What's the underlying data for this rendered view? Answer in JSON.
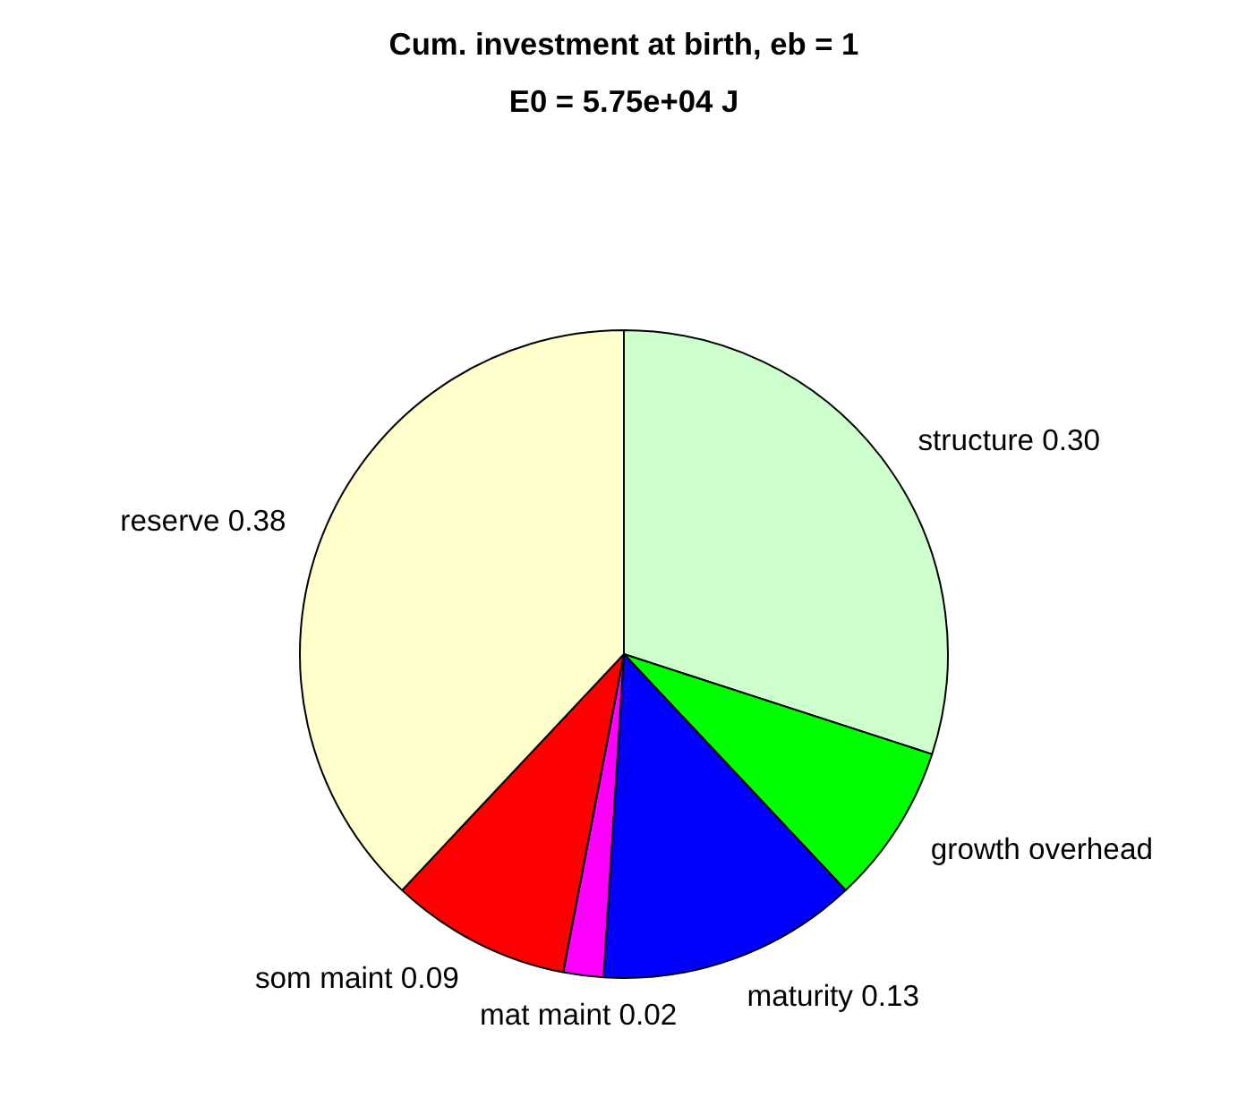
{
  "chart_data": {
    "type": "pie",
    "title": "Cum. investment at birth, eb = 1",
    "subtitle": "E0 = 5.75e+04 J",
    "categories": [
      "structure",
      "growth overhead",
      "maturity",
      "mat maint",
      "som maint",
      "reserve"
    ],
    "values": [
      0.3,
      0.08,
      0.13,
      0.02,
      0.09,
      0.38
    ],
    "value_labels": [
      "0.30",
      null,
      "0.13",
      "0.02",
      "0.09",
      "0.38"
    ],
    "colors": [
      "#ccffcc",
      "#00ff00",
      "#0000ff",
      "#ff00ff",
      "#ff0000",
      "#ffffcc"
    ]
  }
}
